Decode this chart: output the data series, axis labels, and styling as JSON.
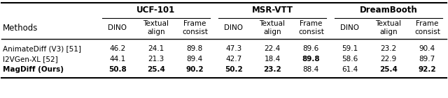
{
  "group_headers": [
    "UCF-101",
    "MSR-VTT",
    "DreamBooth"
  ],
  "col_headers": [
    "DINO",
    "Textual\nalign",
    "Frame\nconsist",
    "DINO",
    "Textual\nalign",
    "Frame\nconsist",
    "DINO",
    "Textual\nalign",
    "Frame\nconsist"
  ],
  "row_labels": [
    "AnimateDiff (V3) [51]",
    "I2VGen-XL [52]",
    "MagDiff (Ours)"
  ],
  "row_label_bold": [
    false,
    false,
    true
  ],
  "data": [
    [
      "46.2",
      "24.1",
      "89.8",
      "47.3",
      "22.4",
      "89.6",
      "59.1",
      "23.2",
      "90.4"
    ],
    [
      "44.1",
      "21.3",
      "89.4",
      "42.7",
      "18.4",
      "89.8",
      "58.6",
      "22.9",
      "89.7"
    ],
    [
      "50.8",
      "25.4",
      "90.2",
      "50.2",
      "23.2",
      "88.4",
      "61.4",
      "25.4",
      "92.2"
    ]
  ],
  "bold_cells": [
    [
      false,
      false,
      false,
      false,
      false,
      false,
      false,
      false,
      false
    ],
    [
      false,
      false,
      false,
      false,
      false,
      true,
      false,
      false,
      false
    ],
    [
      true,
      true,
      true,
      true,
      true,
      false,
      false,
      true,
      true
    ]
  ],
  "background_color": "#ffffff",
  "text_color": "#000000",
  "font_size": 7.5,
  "group_font_size": 8.5
}
